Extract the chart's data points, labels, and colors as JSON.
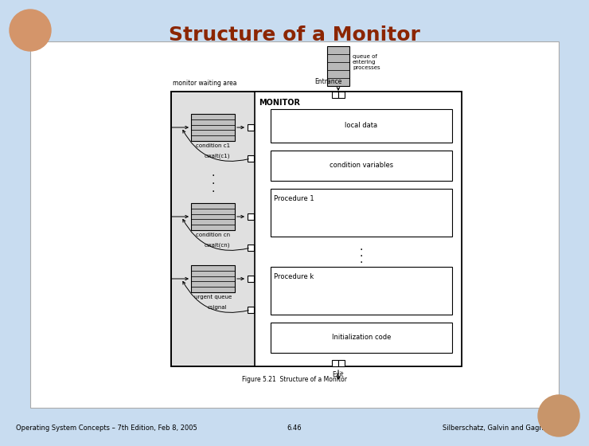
{
  "title": "Structure of a Monitor",
  "title_color": "#8B2500",
  "bg_color": "#C8DCF0",
  "footer_left": "Operating System Concepts – 7th Edition, Feb 8, 2005",
  "footer_center": "6.46",
  "footer_right": "Silberschatz, Galvin and Gagne ©2005",
  "monitor_label": "MONITOR",
  "entrance_label": "Entrance",
  "exit_label": "Exit",
  "monitor_waiting_label": "monitor waiting area",
  "queue_of_entering": "queue of\nentering\nprocesses",
  "local_data_label": "local data",
  "cond_var_label": "condition variables",
  "proc1_label": "Procedure 1",
  "prock_label": "Procedure k",
  "init_label": "Initialization code",
  "condition_c1_label": "condition c1",
  "cwait_c1_label": "cwait(c1)",
  "condition_cn_label": "condition cn",
  "cwait_cn_label": "cwait(cn)",
  "urgent_queue_label": "urgent queue",
  "csignal_label": "csignal",
  "figure_caption": "Figure 5.21  Structure of a Monitor"
}
